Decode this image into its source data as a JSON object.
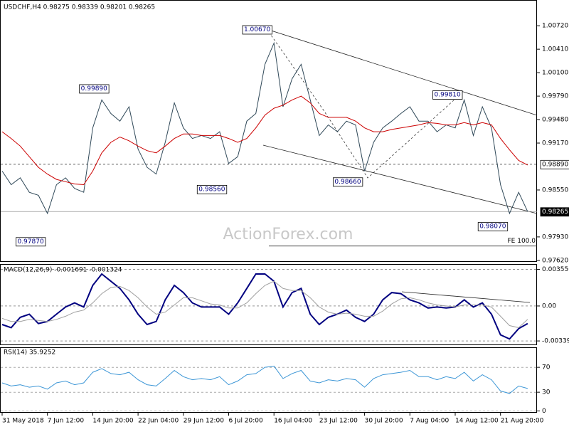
{
  "chart_data": [
    {
      "type": "line",
      "title": "USDCHF,H4 0.98275 0.98339 0.98201 0.98265",
      "watermark": "ActionForex.com",
      "categories": [
        "31 May 2018",
        null,
        null,
        null,
        null,
        "7 Jun 12:00",
        null,
        null,
        null,
        null,
        "14 Jun 20:00",
        null,
        null,
        null,
        null,
        "22 Jun 04:00",
        null,
        null,
        null,
        null,
        "29 Jun 12:00",
        null,
        null,
        null,
        null,
        "6 Jul 20:00",
        null,
        null,
        null,
        null,
        "16 Jul 04:00",
        null,
        null,
        null,
        null,
        "23 Jul 12:00",
        null,
        null,
        null,
        null,
        "30 Jul 20:00",
        null,
        null,
        null,
        null,
        "7 Aug 04:00",
        null,
        null,
        null,
        null,
        "14 Aug 12:00",
        null,
        null,
        null,
        null,
        "21 Aug 20:00",
        null,
        null,
        null
      ],
      "ylim": [
        0.976,
        1.0106
      ],
      "yticks": [
        {
          "value": 1.0072,
          "label": "1.00720"
        },
        {
          "value": 1.0041,
          "label": "1.00410"
        },
        {
          "value": 1.001,
          "label": "1.00100"
        },
        {
          "value": 0.9979,
          "label": "0.99790"
        },
        {
          "value": 0.9948,
          "label": "0.99480"
        },
        {
          "value": 0.9917,
          "label": "0.99170"
        },
        {
          "value": 0.9855,
          "label": "0.98550"
        },
        {
          "value": 0.9793,
          "label": "0.97930"
        },
        {
          "value": 0.9762,
          "label": "0.97620"
        }
      ],
      "grid": false,
      "series": [
        {
          "color": "#2f4858",
          "values": [
            0.988,
            0.9862,
            0.9871,
            0.9852,
            0.9848,
            0.9824,
            0.9862,
            0.9871,
            0.9857,
            0.9852,
            0.9937,
            0.9974,
            0.9956,
            0.9946,
            0.9965,
            0.9909,
            0.9885,
            0.9876,
            0.9918,
            0.997,
            0.9937,
            0.9923,
            0.9927,
            0.9923,
            0.9932,
            0.989,
            0.9899,
            0.9946,
            0.9956,
            1.0021,
            1.0049,
            0.9965,
            1.0002,
            1.0021,
            0.9974,
            0.9927,
            0.9941,
            0.9932,
            0.9946,
            0.9941,
            0.988,
            0.9918,
            0.9937,
            0.9946,
            0.9956,
            0.9965,
            0.9946,
            0.9946,
            0.9932,
            0.9941,
            0.9937,
            0.9974,
            0.9927,
            0.9965,
            0.9937,
            0.9862,
            0.9824,
            0.9852,
            0.98265
          ]
        },
        {
          "color": "#cc0000",
          "values": [
            0.9932,
            0.9923,
            0.9913,
            0.9899,
            0.9885,
            0.9876,
            0.9869,
            0.9866,
            0.9863,
            0.9862,
            0.988,
            0.9904,
            0.9918,
            0.9925,
            0.992,
            0.9913,
            0.9907,
            0.9904,
            0.9913,
            0.9923,
            0.9929,
            0.9929,
            0.9927,
            0.9927,
            0.9927,
            0.9923,
            0.9918,
            0.9923,
            0.9937,
            0.9954,
            0.9963,
            0.9967,
            0.9974,
            0.9979,
            0.997,
            0.9956,
            0.9951,
            0.9951,
            0.9951,
            0.9946,
            0.9937,
            0.9932,
            0.9932,
            0.9935,
            0.9937,
            0.9939,
            0.9941,
            0.9944,
            0.9943,
            0.9941,
            0.9941,
            0.9944,
            0.9941,
            0.9944,
            0.9941,
            0.9923,
            0.9908,
            0.9894,
            0.9888
          ]
        }
      ],
      "hlines": [
        {
          "value": 0.9889,
          "label": "0.98890",
          "style": "dashed"
        },
        {
          "value": 0.98265,
          "label": "0.98265",
          "style": "current"
        }
      ],
      "fe_line": {
        "value": 0.9781,
        "label": "FE 100.0"
      },
      "annotations": [
        {
          "x": 30,
          "value": 1.0067,
          "label": "1.00670"
        },
        {
          "x": 12,
          "value": 0.9989,
          "label": "0.99890"
        },
        {
          "x": 25,
          "value": 0.9856,
          "label": "0.98560"
        },
        {
          "x": 5,
          "value": 0.9787,
          "label": "0.97870"
        },
        {
          "x": 40,
          "value": 0.9866,
          "label": "0.98660"
        },
        {
          "x": 51,
          "value": 0.9981,
          "label": "0.99810"
        },
        {
          "x": 56,
          "value": 0.9807,
          "label": "0.98070"
        }
      ]
    },
    {
      "type": "line",
      "title": "MACD(12,26,9) -0.001691 -0.001324",
      "ylim": [
        -0.0038,
        0.004
      ],
      "yticks": [
        0.003556,
        {
          "value": 0,
          "label": "0.00"
        },
        -0.003391
      ],
      "grid": true,
      "series": [
        {
          "color": "#000080",
          "values": [
            -0.0018,
            -0.0021,
            -0.0011,
            -0.0008,
            -0.0017,
            -0.0015,
            -0.0008,
            -0.0001,
            0.0003,
            -0.0001,
            0.002,
            0.0031,
            0.0024,
            0.0017,
            0.0006,
            -0.0008,
            -0.0018,
            -0.0015,
            0.0006,
            0.002,
            0.0013,
            0.0003,
            -0.0001,
            -0.0001,
            -0.0001,
            -0.0008,
            0.0003,
            0.0017,
            0.0031,
            0.0031,
            0.0024,
            -0.0001,
            0.0013,
            0.0017,
            -0.0008,
            -0.0018,
            -0.0011,
            -0.0008,
            -0.0004,
            -0.0011,
            -0.0015,
            -0.0008,
            0.0006,
            0.0013,
            0.0012,
            0.0006,
            0.0003,
            -0.0002,
            -0.0001,
            -0.0002,
            -0.0001,
            0.0006,
            -0.0001,
            0.0003,
            -0.0008,
            -0.0028,
            -0.0032,
            -0.0022,
            -0.0017
          ]
        },
        {
          "color": "#a0a0a0",
          "values": [
            -0.0012,
            -0.0015,
            -0.0015,
            -0.0013,
            -0.0014,
            -0.0015,
            -0.0013,
            -0.001,
            -0.0006,
            -0.0004,
            0.0003,
            0.0012,
            0.0018,
            0.0019,
            0.0015,
            0.0008,
            -0.0001,
            -0.0008,
            -0.0006,
            0.0001,
            0.0008,
            0.0008,
            0.0005,
            0.0002,
            0.0001,
            -0.0002,
            -0.0002,
            0.0003,
            0.0012,
            0.002,
            0.0024,
            0.0017,
            0.0015,
            0.0015,
            0.0008,
            -0.0001,
            -0.0006,
            -0.0008,
            -0.0007,
            -0.0008,
            -0.001,
            -0.001,
            -0.0005,
            0.0002,
            0.0007,
            0.0008,
            0.0006,
            0.0003,
            0.0001,
            0,
            -0.0001,
            0.0001,
            0.0001,
            0.0001,
            -0.0001,
            -0.001,
            -0.0019,
            -0.0021,
            -0.0013
          ]
        }
      ]
    },
    {
      "type": "line",
      "title": "RSI(14) 35.9252",
      "ylim": [
        -3,
        101
      ],
      "yticks": [
        70,
        30,
        0
      ],
      "grid": true,
      "series": [
        {
          "color": "#3c96d6",
          "values": [
            45,
            40,
            42,
            38,
            40,
            35,
            45,
            48,
            42,
            45,
            62,
            68,
            60,
            58,
            62,
            50,
            42,
            40,
            52,
            65,
            55,
            50,
            52,
            50,
            55,
            42,
            48,
            58,
            60,
            70,
            72,
            52,
            60,
            65,
            48,
            45,
            50,
            48,
            52,
            50,
            38,
            52,
            58,
            60,
            62,
            65,
            55,
            55,
            50,
            55,
            52,
            62,
            48,
            58,
            50,
            32,
            28,
            40,
            35.9252
          ]
        }
      ]
    }
  ]
}
